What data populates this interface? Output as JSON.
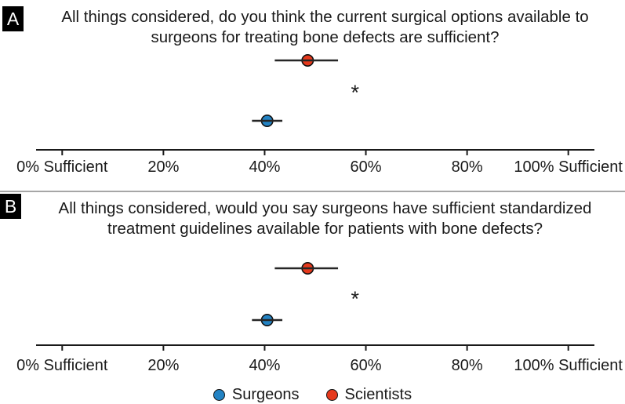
{
  "figure": {
    "background": "#ffffff",
    "divider_color": "#a6a6a6",
    "text_color": "#1a1a1a",
    "error_bar_color": "#262626",
    "series_colors": {
      "Surgeons": "#2383c4",
      "Scientists": "#e6391c"
    },
    "legend": {
      "items": [
        {
          "label": "Surgeons",
          "series": "Surgeons"
        },
        {
          "label": "Scientists",
          "series": "Scientists"
        }
      ]
    }
  },
  "chart_data": [
    {
      "type": "scatter",
      "panel_label": "A",
      "title_line1": "All things considered, do you think the current surgical options available to",
      "title_line2": "surgeons for treating bone defects are sufficient?",
      "x_axis": {
        "min": 0,
        "max": 100,
        "tick_values": [
          0,
          20,
          40,
          60,
          80,
          100
        ],
        "tick_labels": [
          "0% Sufficient",
          "20%",
          "40%",
          "60%",
          "80%",
          "100% Sufficient"
        ],
        "grid": false
      },
      "points": [
        {
          "series": "Scientists",
          "mean_pct": 48.5,
          "ci_low_pct": 42.0,
          "ci_high_pct": 54.5
        },
        {
          "series": "Surgeons",
          "mean_pct": 40.5,
          "ci_low_pct": 37.5,
          "ci_high_pct": 43.5
        }
      ],
      "significance_marker": "*"
    },
    {
      "type": "scatter",
      "panel_label": "B",
      "title_line1": "All things considered, would you say surgeons have sufficient standardized",
      "title_line2": "treatment guidelines available for patients with bone defects?",
      "x_axis": {
        "min": 0,
        "max": 100,
        "tick_values": [
          0,
          20,
          40,
          60,
          80,
          100
        ],
        "tick_labels": [
          "0% Sufficient",
          "20%",
          "40%",
          "60%",
          "80%",
          "100% Sufficient"
        ],
        "grid": false
      },
      "points": [
        {
          "series": "Scientists",
          "mean_pct": 48.5,
          "ci_low_pct": 42.0,
          "ci_high_pct": 54.5
        },
        {
          "series": "Surgeons",
          "mean_pct": 40.5,
          "ci_low_pct": 37.5,
          "ci_high_pct": 43.5
        }
      ],
      "significance_marker": "*"
    }
  ]
}
